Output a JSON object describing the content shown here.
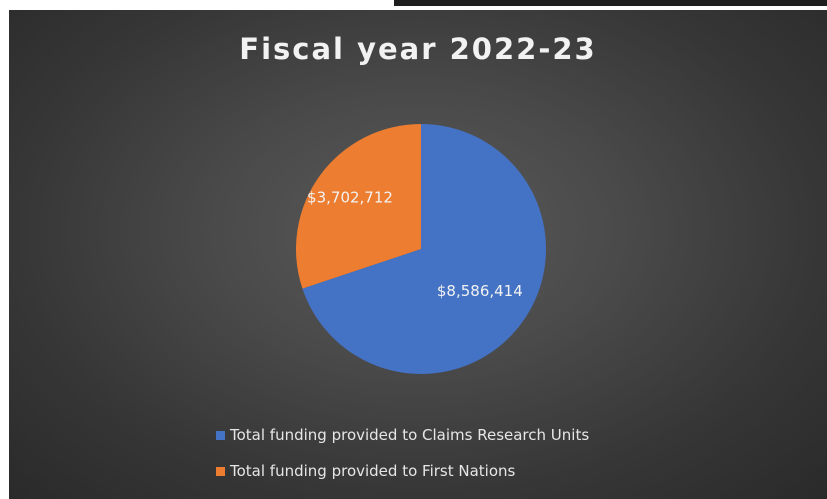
{
  "chart_data": {
    "type": "pie",
    "title": "Fiscal year 2022-23",
    "slices": [
      {
        "label": "Total funding provided to Claims Research Units",
        "value": 8586414,
        "display": "$8,586,414",
        "color": "#4472c4"
      },
      {
        "label": "Total funding provided to First Nations",
        "value": 3702712,
        "display": "$3,702,712",
        "color": "#ed7d31"
      }
    ],
    "legend_position": "bottom"
  }
}
